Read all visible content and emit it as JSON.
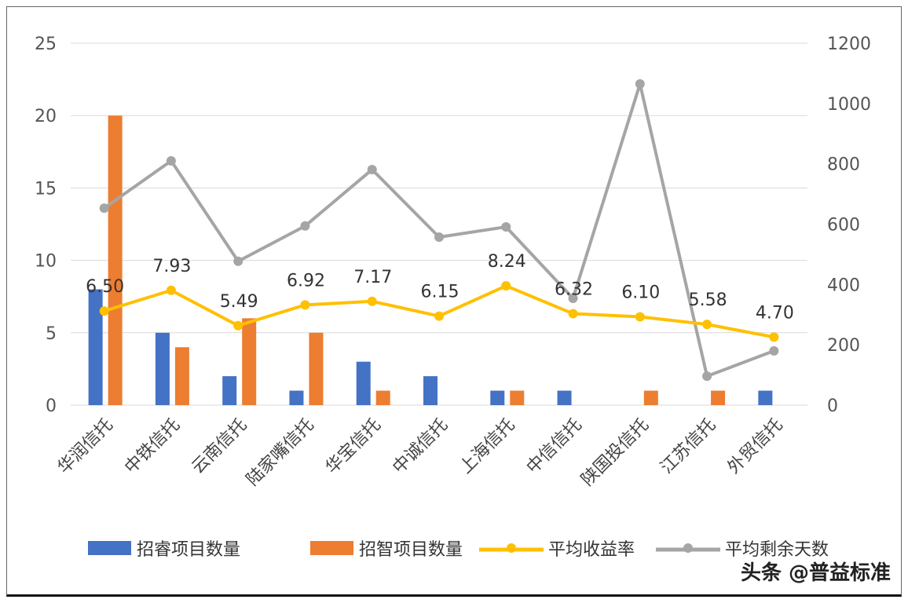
{
  "chart_data": {
    "type": "bar+line",
    "categories": [
      "华润信托",
      "中铁信托",
      "云南信托",
      "陆家嘴信托",
      "华宝信托",
      "中诚信托",
      "上海信托",
      "中信信托",
      "陕国投信托",
      "江苏信托",
      "外贸信托"
    ],
    "series": [
      {
        "name": "招睿项目数量",
        "type": "bar",
        "axis": "left",
        "color": "#4472C4",
        "values": [
          8,
          5,
          2,
          1,
          3,
          2,
          1,
          1,
          0,
          0,
          1
        ]
      },
      {
        "name": "招智项目数量",
        "type": "bar",
        "axis": "left",
        "color": "#ED7D31",
        "values": [
          20,
          4,
          6,
          5,
          1,
          0,
          1,
          0,
          1,
          1,
          0
        ]
      },
      {
        "name": "平均收益率",
        "type": "line",
        "axis": "left",
        "color": "#FFC000",
        "values": [
          6.5,
          7.93,
          5.49,
          6.92,
          7.17,
          6.15,
          8.24,
          6.32,
          6.1,
          5.58,
          4.7
        ],
        "data_labels": [
          "6.50",
          "7.93",
          "5.49",
          "6.92",
          "7.17",
          "6.15",
          "8.24",
          "6.32",
          "6.10",
          "5.58",
          "4.70"
        ]
      },
      {
        "name": "平均剩余天数",
        "type": "line",
        "axis": "right",
        "color": "#A5A5A5",
        "values": [
          653,
          810,
          477,
          594,
          781,
          557,
          591,
          354,
          1065,
          96,
          180
        ]
      }
    ],
    "y_left": {
      "lim": [
        0,
        25
      ],
      "ticks": [
        "0",
        "5",
        "10",
        "15",
        "20",
        "25"
      ]
    },
    "y_right": {
      "lim": [
        0,
        1200
      ],
      "ticks": [
        "0",
        "200",
        "400",
        "600",
        "800",
        "1000",
        "1200"
      ]
    },
    "grid": true,
    "legend": "bottom"
  },
  "watermark": "头条 @普益标准"
}
